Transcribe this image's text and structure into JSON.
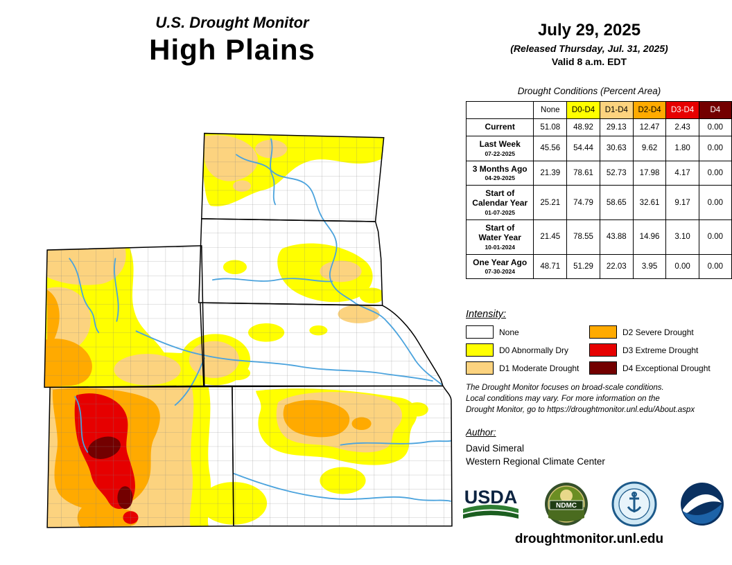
{
  "title": {
    "line1": "U.S. Drought Monitor",
    "line2": "High Plains"
  },
  "date_block": {
    "date": "July 29, 2025",
    "released": "(Released Thursday, Jul. 31, 2025)",
    "valid": "Valid 8 a.m. EDT"
  },
  "table": {
    "caption": "Drought Conditions (Percent Area)",
    "columns": [
      "None",
      "D0-D4",
      "D1-D4",
      "D2-D4",
      "D3-D4",
      "D4"
    ],
    "rows": [
      {
        "label_lines": [
          "Current"
        ],
        "date": "",
        "values": [
          "51.08",
          "48.92",
          "29.13",
          "12.47",
          "2.43",
          "0.00"
        ]
      },
      {
        "label_lines": [
          "Last Week"
        ],
        "date": "07-22-2025",
        "values": [
          "45.56",
          "54.44",
          "30.63",
          "9.62",
          "1.80",
          "0.00"
        ]
      },
      {
        "label_lines": [
          "3 Months Ago"
        ],
        "date": "04-29-2025",
        "values": [
          "21.39",
          "78.61",
          "52.73",
          "17.98",
          "4.17",
          "0.00"
        ]
      },
      {
        "label_lines": [
          "Start of",
          "Calendar Year"
        ],
        "date": "01-07-2025",
        "values": [
          "25.21",
          "74.79",
          "58.65",
          "32.61",
          "9.17",
          "0.00"
        ]
      },
      {
        "label_lines": [
          "Start of",
          "Water Year"
        ],
        "date": "10-01-2024",
        "values": [
          "21.45",
          "78.55",
          "43.88",
          "14.96",
          "3.10",
          "0.00"
        ]
      },
      {
        "label_lines": [
          "One Year Ago"
        ],
        "date": "07-30-2024",
        "values": [
          "48.71",
          "51.29",
          "22.03",
          "3.95",
          "0.00",
          "0.00"
        ]
      }
    ]
  },
  "legend": {
    "title": "Intensity:",
    "items": [
      {
        "label": "None",
        "color": "#ffffff"
      },
      {
        "label": "D0 Abnormally Dry",
        "color": "#ffff00"
      },
      {
        "label": "D1 Moderate Drought",
        "color": "#fcd37f"
      },
      {
        "label": "D2 Severe Drought",
        "color": "#ffaa00"
      },
      {
        "label": "D3 Extreme Drought",
        "color": "#e60000"
      },
      {
        "label": "D4 Exceptional Drought",
        "color": "#730000"
      }
    ]
  },
  "disclaimer": {
    "line1": "The Drought Monitor focuses on broad-scale conditions.",
    "line2": "Local conditions may vary. For more information on the",
    "line3": "Drought Monitor, go to https://droughtmonitor.unl.edu/About.aspx"
  },
  "author": {
    "title": "Author:",
    "name": "David Simeral",
    "org": "Western Regional Climate Center"
  },
  "logos": {
    "usda_text": "USDA",
    "ndmc_text": "NDMC"
  },
  "footer": {
    "url": "droughtmonitor.unl.edu"
  },
  "colors": {
    "drought": {
      "none": "#ffffff",
      "d0": "#ffff00",
      "d1": "#fcd37f",
      "d2": "#ffaa00",
      "d3": "#e60000",
      "d4": "#730000"
    },
    "river": "#4ba3dd",
    "border": "#000000"
  }
}
